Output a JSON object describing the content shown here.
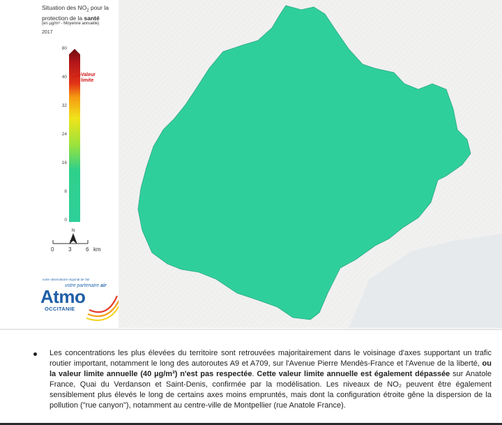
{
  "legend": {
    "title_part1": "Situation des NO",
    "title_sub": "2",
    "title_part2": " pour la protection de la ",
    "title_bold": "santé",
    "unit": "(en µg/m³ - Moyenne annuelle)",
    "year": "2017",
    "ticks": [
      "80",
      "40",
      "32",
      "24",
      "16",
      "8",
      "0"
    ],
    "limit_label_1": "Valeur",
    "limit_label_2": "limite",
    "limit_color": "#d01818",
    "scale_labels": [
      "0",
      "3",
      "6",
      "km"
    ]
  },
  "logo": {
    "small_text": "votre observatoire régional de l'air",
    "tagline_1": "votre partenaire ",
    "tagline_2": "air",
    "brand": "Atmo",
    "region": "OCCITANIE"
  },
  "map": {
    "description_colors": {
      "base": "#2fcf9b",
      "mid": "#8fe03a",
      "high": "#f2d11a",
      "peak": "#c8201c"
    }
  },
  "text": {
    "p1": "Les concentrations les plus élevées du territoire sont retrouvées majoritairement dans le voisinage d'axes supportant un trafic routier important, notamment le long des autoroutes A9 et A709, sur l'Avenue Pierre Mendès-France et l'Avenue de la liberté, ",
    "p1_bold": "ou la valeur limite annuelle (40 µg/m³) n'est pas respectée",
    "p2": ". ",
    "p2_bold": "Cette valeur limite annuelle est également dépassée",
    "p3": " sur Anatole France, Quai du Verdanson et Saint-Denis, confirmée par la modélisation. Les niveaux de NO₂ peuvent être également sensiblement plus élevés le long de certains axes moins empruntés, mais dont la configuration étroite gêne la dispersion de la pollution (\"rue canyon\"), notamment au centre-ville de Montpellier (rue Anatole France)."
  }
}
